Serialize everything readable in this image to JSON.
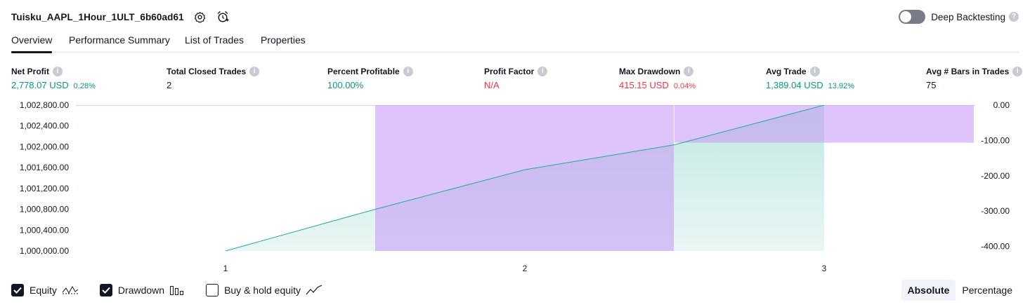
{
  "header": {
    "title": "Tuisku_AAPL_1Hour_1ULT_6b60ad61"
  },
  "deep_backtesting": {
    "label": "Deep Backtesting",
    "enabled": false,
    "info": "?"
  },
  "tabs": [
    {
      "label": "Overview",
      "active": true
    },
    {
      "label": "Performance Summary",
      "active": false
    },
    {
      "label": "List of Trades",
      "active": false
    },
    {
      "label": "Properties",
      "active": false
    }
  ],
  "metrics": [
    {
      "label": "Net Profit",
      "info": "i",
      "value": "2,778.07 USD",
      "pct": "0.28%",
      "color": "#089981"
    },
    {
      "label": "Total Closed Trades",
      "info": "i",
      "value": "2",
      "color": "#131722"
    },
    {
      "label": "Percent Profitable",
      "info": "i",
      "value": "100.00%",
      "color": "#089981"
    },
    {
      "label": "Profit Factor",
      "info": "i",
      "value": "N/A",
      "color": "#f23645"
    },
    {
      "label": "Max Drawdown",
      "info": "i",
      "value": "415.15 USD",
      "pct": "0.04%",
      "color": "#f23645"
    },
    {
      "label": "Avg Trade",
      "info": "i",
      "value": "1,389.04 USD",
      "pct": "13.92%",
      "color": "#089981"
    },
    {
      "label": "Avg # Bars in Trades",
      "info": "i",
      "value": "75",
      "color": "#131722"
    }
  ],
  "chart_data": {
    "type": "line",
    "x": [
      1,
      2,
      3
    ],
    "x_ticks": [
      "1",
      "2",
      "3"
    ],
    "equity": {
      "color": "#22ab94",
      "points": [
        [
          1,
          1000000.0
        ],
        [
          1.5,
          1000800.0
        ],
        [
          2,
          1001560.0
        ],
        [
          2.5,
          1002040.0
        ],
        [
          3,
          1002800.0
        ]
      ]
    },
    "drawdown": {
      "color": "#c69cf7",
      "bars": [
        [
          1.5,
          2.5,
          -415.15
        ],
        [
          2.5,
          3.5,
          -107.0
        ]
      ]
    },
    "left_axis": {
      "ticks": [
        "1,002,800.00",
        "1,002,400.00",
        "1,002,000.00",
        "1,001,600.00",
        "1,001,200.00",
        "1,000,800.00",
        "1,000,400.00",
        "1,000,000.00"
      ],
      "min": 1000000,
      "max": 1002800
    },
    "right_axis": {
      "ticks": [
        "0.00",
        "-100.00",
        "-200.00",
        "-300.00",
        "-400.00"
      ],
      "min": -415.15,
      "max": 0
    }
  },
  "legend": [
    {
      "label": "Equity",
      "checked": true,
      "icon": "equity-line-icon"
    },
    {
      "label": "Drawdown",
      "checked": true,
      "icon": "drawdown-bars-icon"
    },
    {
      "label": "Buy & hold equity",
      "checked": false,
      "icon": "buy-hold-line-icon"
    }
  ],
  "view_mode": {
    "options": [
      "Absolute",
      "Percentage"
    ],
    "selected": "Absolute"
  }
}
